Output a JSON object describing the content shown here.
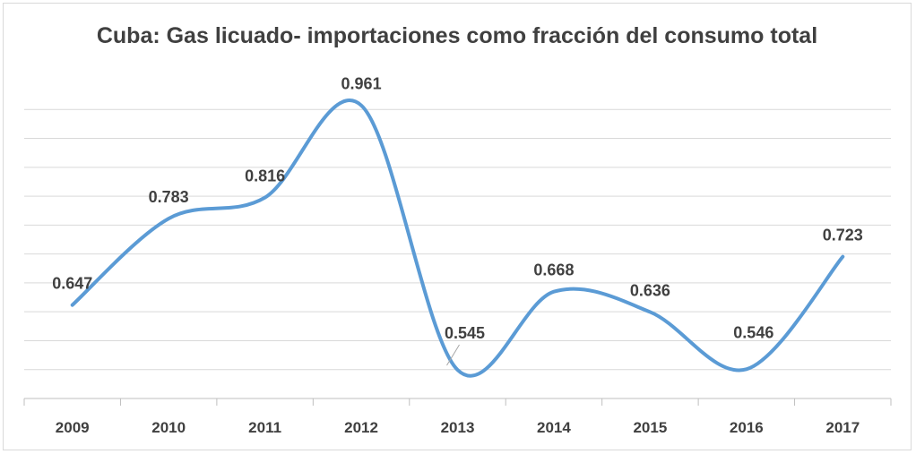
{
  "chart_data": {
    "type": "line",
    "title": "Cuba: Gas licuado- importaciones como fracción del consumo total",
    "categories": [
      "2009",
      "2010",
      "2011",
      "2012",
      "2013",
      "2014",
      "2015",
      "2016",
      "2017"
    ],
    "series": [
      {
        "values": [
          0.647,
          0.783,
          0.816,
          0.961,
          0.545,
          0.668,
          0.636,
          0.546,
          0.723
        ]
      }
    ],
    "data_labels": [
      "0.647",
      "0.783",
      "0.816",
      "0.961",
      "0.545",
      "0.668",
      "0.636",
      "0.546",
      "0.723"
    ],
    "ylim": [
      0.5,
      1.0
    ],
    "y_axis_labels_shown": false,
    "grid": true,
    "smooth": true,
    "line_color": "#5b9bd5",
    "legend": "none"
  }
}
